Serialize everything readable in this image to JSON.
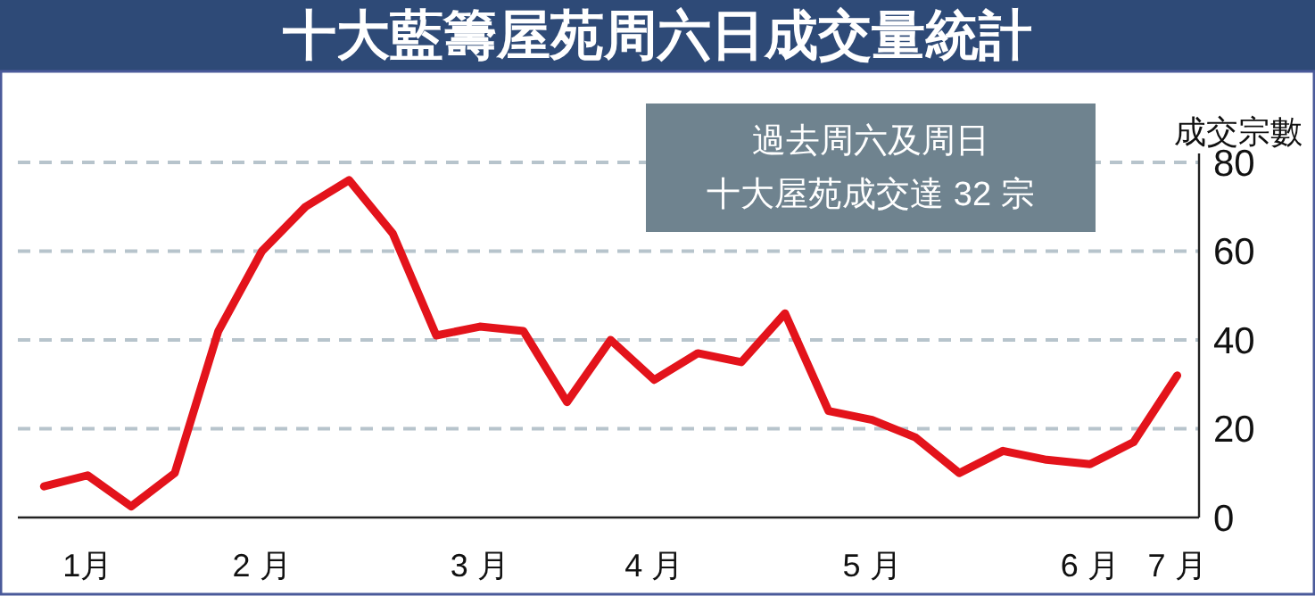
{
  "chart_data": {
    "type": "line",
    "title": "十大藍籌屋苑周六日成交量統計",
    "ylabel": "成交宗數",
    "annotations": [
      "過去周六及周日",
      "十大屋苑成交達 32 宗"
    ],
    "categories": [
      null,
      "1月",
      null,
      null,
      null,
      "2 月",
      null,
      null,
      null,
      null,
      "3 月",
      null,
      null,
      null,
      "4 月",
      null,
      null,
      null,
      null,
      "5 月",
      null,
      null,
      null,
      null,
      "6 月",
      null,
      "7 月"
    ],
    "series": [
      {
        "color": "#e3131b",
        "values": [
          7,
          9.5,
          2.5,
          10,
          42,
          60,
          70,
          76,
          64,
          41,
          43,
          42,
          26,
          40,
          31,
          37,
          35,
          46,
          24,
          22,
          18,
          10,
          15,
          13,
          12,
          17,
          32
        ]
      }
    ],
    "ylim": [
      0,
      80
    ],
    "yticks": [
      0,
      20,
      40,
      60,
      80
    ],
    "grid": "y",
    "marker": "none",
    "line_style": "solid"
  }
}
